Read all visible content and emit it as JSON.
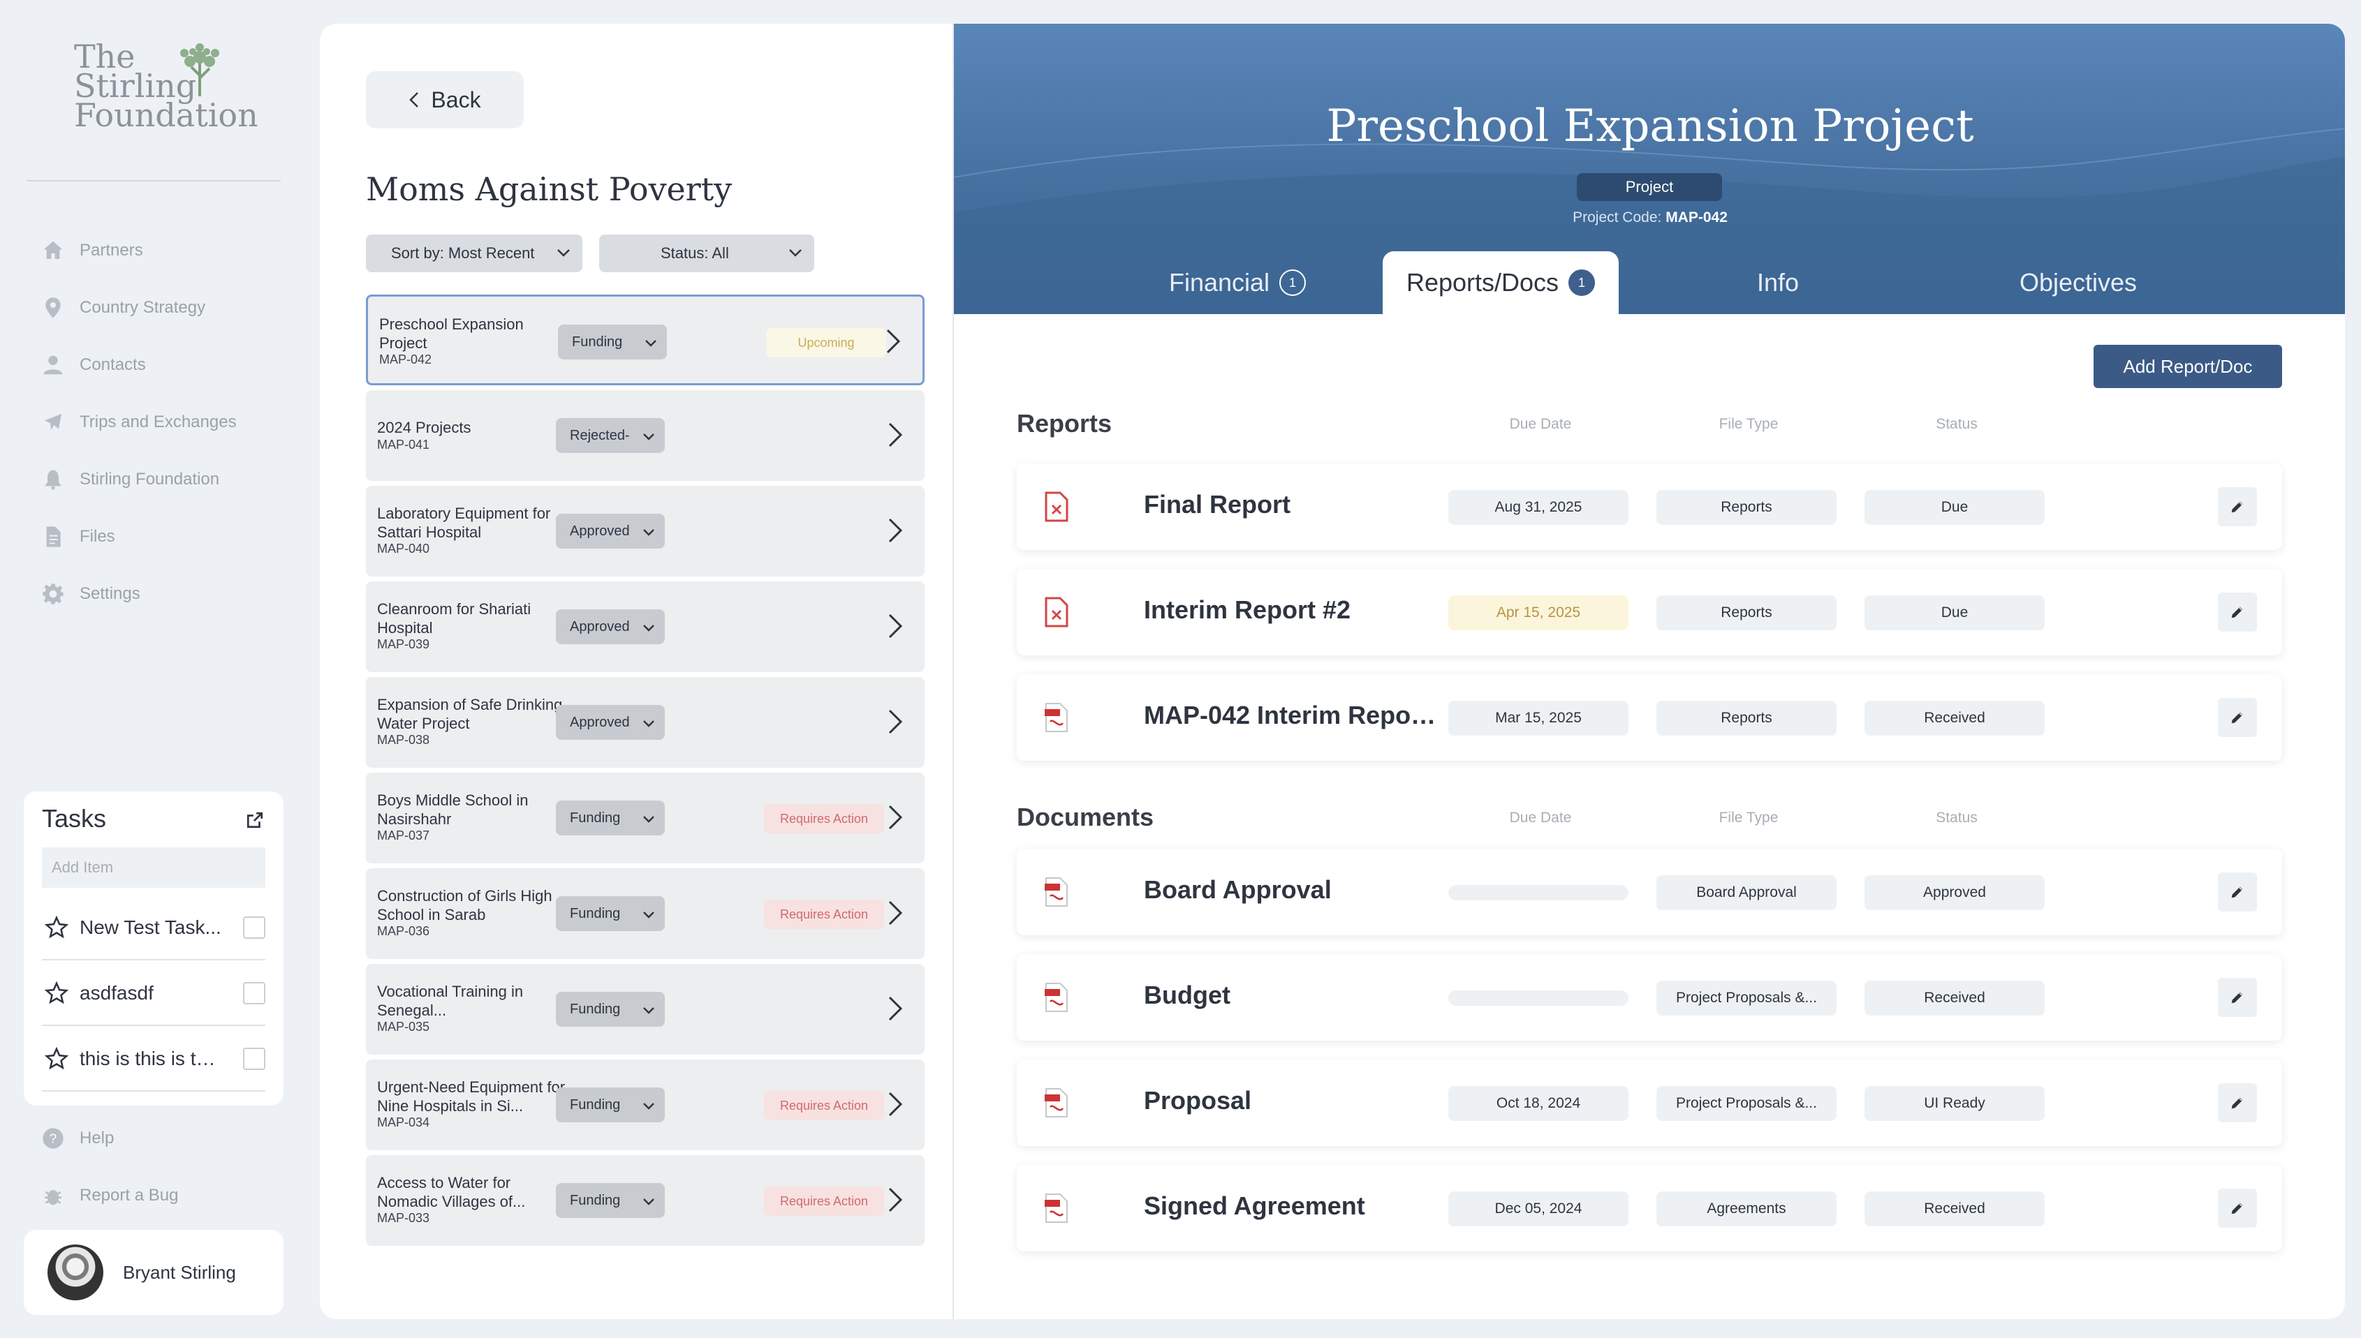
{
  "org": {
    "logo_line1": "The",
    "logo_line2": "Stirling",
    "logo_line3": "Foundation"
  },
  "nav": {
    "items": [
      {
        "label": "Partners",
        "icon": "home-icon"
      },
      {
        "label": "Country Strategy",
        "icon": "map-pin-icon"
      },
      {
        "label": "Contacts",
        "icon": "person-icon"
      },
      {
        "label": "Trips and Exchanges",
        "icon": "plane-icon"
      },
      {
        "label": "Stirling Foundation",
        "icon": "bell-icon"
      },
      {
        "label": "Files",
        "icon": "file-icon"
      },
      {
        "label": "Settings",
        "icon": "gear-icon"
      }
    ],
    "help": "Help",
    "report_bug": "Report a Bug"
  },
  "tasks": {
    "title": "Tasks",
    "add_placeholder": "Add Item",
    "items": [
      {
        "label": "New Test Task..."
      },
      {
        "label": "asdfasdf"
      },
      {
        "label": "this is this is thi..."
      }
    ]
  },
  "user": {
    "name": "Bryant Stirling"
  },
  "list": {
    "back_label": "Back",
    "title": "Moms Against Poverty",
    "sort_label": "Sort by: Most Recent",
    "status_label": "Status: All",
    "projects": [
      {
        "name": "Preschool Expansion Project",
        "code": "MAP-042",
        "stage": "Funding",
        "badge": "Upcoming",
        "badge_type": "upcoming"
      },
      {
        "name": "2024 Projects",
        "code": "MAP-041",
        "stage": "Rejected-",
        "badge": "",
        "badge_type": ""
      },
      {
        "name": "Laboratory Equipment for Sattari Hospital",
        "code": "MAP-040",
        "stage": "Approved",
        "badge": "",
        "badge_type": ""
      },
      {
        "name": "Cleanroom for Shariati Hospital",
        "code": "MAP-039",
        "stage": "Approved",
        "badge": "",
        "badge_type": ""
      },
      {
        "name": "Expansion of Safe Drinking Water Project",
        "code": "MAP-038",
        "stage": "Approved",
        "badge": "",
        "badge_type": ""
      },
      {
        "name": "Boys Middle School in Nasirshahr",
        "code": "MAP-037",
        "stage": "Funding",
        "badge": "Requires Action",
        "badge_type": "action"
      },
      {
        "name": "Construction of Girls High School in Sarab",
        "code": "MAP-036",
        "stage": "Funding",
        "badge": "Requires Action",
        "badge_type": "action"
      },
      {
        "name": "Vocational Training in Senegal...",
        "code": "MAP-035",
        "stage": "Funding",
        "badge": "",
        "badge_type": ""
      },
      {
        "name": "Urgent-Need Equipment for Nine Hospitals in Si...",
        "code": "MAP-034",
        "stage": "Funding",
        "badge": "Requires Action",
        "badge_type": "action"
      },
      {
        "name": "Access to Water for Nomadic Villages of...",
        "code": "MAP-033",
        "stage": "Funding",
        "badge": "Requires Action",
        "badge_type": "action"
      }
    ]
  },
  "detail": {
    "title": "Preschool Expansion Project",
    "type_pill": "Project",
    "code_label": "Project Code:",
    "code_value": "MAP-042",
    "tabs": [
      {
        "label": "Financial",
        "count": "1"
      },
      {
        "label": "Reports/Docs",
        "count": "1"
      },
      {
        "label": "Info",
        "count": ""
      },
      {
        "label": "Objectives",
        "count": ""
      }
    ],
    "add_button": "Add Report/Doc",
    "columns": {
      "due": "Due Date",
      "type": "File Type",
      "status": "Status"
    },
    "reports_title": "Reports",
    "reports": [
      {
        "name": "Final Report",
        "due": "Aug 31, 2025",
        "type": "Reports",
        "status": "Due",
        "icon": "missing-file-icon",
        "due_warn": false
      },
      {
        "name": "Interim Report #2",
        "due": "Apr 15, 2025",
        "type": "Reports",
        "status": "Due",
        "icon": "missing-file-icon",
        "due_warn": true
      },
      {
        "name": "MAP-042 Interim Repor...",
        "due": "Mar 15, 2025",
        "type": "Reports",
        "status": "Received",
        "icon": "pdf-icon",
        "due_warn": false
      }
    ],
    "documents_title": "Documents",
    "documents": [
      {
        "name": "Board Approval",
        "due": "",
        "type": "Board Approval",
        "status": "Approved",
        "icon": "pdf-icon"
      },
      {
        "name": "Budget",
        "due": "",
        "type": "Project Proposals &...",
        "status": "Received",
        "icon": "pdf-icon"
      },
      {
        "name": "Proposal",
        "due": "Oct 18, 2024",
        "type": "Project Proposals &...",
        "status": "UI Ready",
        "icon": "pdf-icon"
      },
      {
        "name": "Signed Agreement",
        "due": "Dec 05, 2024",
        "type": "Agreements",
        "status": "Received",
        "icon": "pdf-icon"
      }
    ]
  }
}
